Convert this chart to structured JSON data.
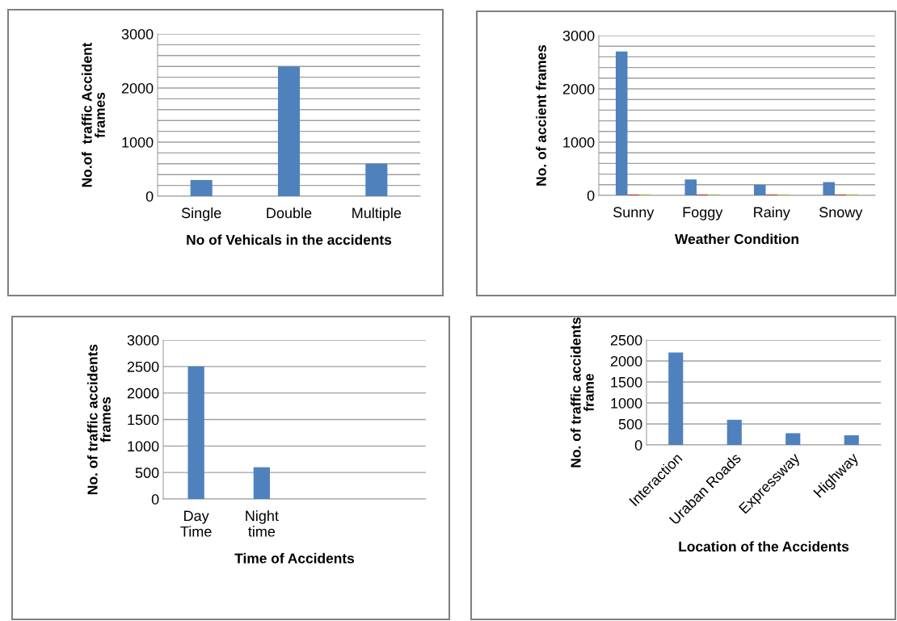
{
  "chart_data": [
    {
      "type": "bar",
      "xlabel": "No of Vehicals in the accidents",
      "ylabel": "No.of  traffic Accident\nframes",
      "categories": [
        "Single",
        "Double",
        "Multiple"
      ],
      "series": [
        {
          "color": "#4f81bd",
          "values": [
            300,
            2400,
            600
          ]
        }
      ],
      "ylim": [
        0,
        3000
      ],
      "yticks": [
        0,
        {
          "value": 200,
          "label": null
        },
        {
          "value": 400,
          "label": null
        },
        {
          "value": 600,
          "label": null
        },
        {
          "value": 800,
          "label": null
        },
        1000,
        {
          "value": 1200,
          "label": null
        },
        {
          "value": 1400,
          "label": null
        },
        {
          "value": 1600,
          "label": null
        },
        {
          "value": 1800,
          "label": null
        },
        2000,
        {
          "value": 2200,
          "label": null
        },
        {
          "value": 2400,
          "label": null
        },
        {
          "value": 2600,
          "label": null
        },
        {
          "value": 2800,
          "label": null
        },
        3000
      ],
      "grid": "y"
    },
    {
      "type": "bar",
      "xlabel": "Weather Condition",
      "ylabel": "No. of accient frames",
      "categories": [
        "Sunny",
        "Foggy",
        "Rainy",
        "Snowy"
      ],
      "series": [
        {
          "color": "#4f81bd",
          "values": [
            2700,
            300,
            200,
            250
          ]
        },
        {
          "color": "#c0504d",
          "values": [
            20,
            20,
            20,
            20
          ]
        },
        {
          "color": "#9bbb59",
          "values": [
            20,
            20,
            20,
            20
          ]
        }
      ],
      "ylim": [
        0,
        3000
      ],
      "yticks": [
        0,
        {
          "value": 200,
          "label": null
        },
        {
          "value": 400,
          "label": null
        },
        {
          "value": 600,
          "label": null
        },
        {
          "value": 800,
          "label": null
        },
        1000,
        {
          "value": 1200,
          "label": null
        },
        {
          "value": 1400,
          "label": null
        },
        {
          "value": 1600,
          "label": null
        },
        {
          "value": 1800,
          "label": null
        },
        2000,
        {
          "value": 2200,
          "label": null
        },
        {
          "value": 2400,
          "label": null
        },
        {
          "value": 2600,
          "label": null
        },
        {
          "value": 2800,
          "label": null
        },
        3000
      ],
      "grid": "y"
    },
    {
      "type": "bar",
      "xlabel": "Time of Accidents",
      "ylabel": "No. of traffic accidents\nframes",
      "categories": [
        "Day\nTime",
        "Night\ntime",
        null,
        null
      ],
      "series": [
        {
          "color": "#4f81bd",
          "values": [
            2500,
            600,
            null,
            null
          ]
        }
      ],
      "ylim": [
        0,
        3000
      ],
      "yticks": [
        0,
        500,
        1000,
        1500,
        2000,
        2500,
        3000
      ],
      "grid": "y"
    },
    {
      "type": "bar",
      "xlabel": "Location of the Accidents",
      "ylabel": "No. of traffic accidents\nframe",
      "categories": [
        "Interaction",
        "Uraban Roads",
        "Expressway",
        "Highway"
      ],
      "series": [
        {
          "color": "#4f81bd",
          "values": [
            2200,
            600,
            280,
            230
          ]
        }
      ],
      "ylim": [
        0,
        2500
      ],
      "yticks": [
        0,
        500,
        1000,
        1500,
        2000,
        2500
      ],
      "grid": "y"
    }
  ]
}
